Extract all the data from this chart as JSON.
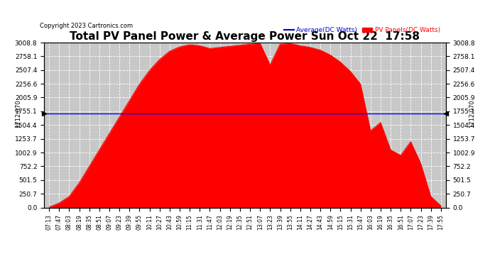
{
  "title": "Total PV Panel Power & Average Power Sun Oct 22  17:58",
  "copyright": "Copyright 2023 Cartronics.com",
  "legend_avg": "Average(DC Watts)",
  "legend_pv": "PV Panels(DC Watts)",
  "avg_value": 1712.07,
  "avg_label": "1712.070",
  "y_max": 3008.8,
  "y_min": 0.0,
  "yticks": [
    0.0,
    250.7,
    501.5,
    752.2,
    1002.9,
    1253.7,
    1504.4,
    1755.1,
    2005.9,
    2256.6,
    2507.4,
    2758.1,
    3008.8
  ],
  "bg_color": "#ffffff",
  "plot_bg_color": "#c8c8c8",
  "fill_color": "#ff0000",
  "avg_line_color": "#0000ff",
  "grid_color": "#ffffff",
  "title_color": "#000000",
  "copyright_color": "#000000",
  "legend_avg_color": "#0000cd",
  "legend_pv_color": "#ff0000",
  "xtick_labels": [
    "07:13",
    "07:47",
    "08:03",
    "08:19",
    "08:35",
    "08:51",
    "09:07",
    "09:23",
    "09:39",
    "09:55",
    "10:11",
    "10:27",
    "10:43",
    "10:59",
    "11:15",
    "11:31",
    "11:47",
    "12:03",
    "12:19",
    "12:35",
    "12:51",
    "13:07",
    "13:23",
    "13:39",
    "13:55",
    "14:11",
    "14:27",
    "14:43",
    "14:59",
    "15:15",
    "15:31",
    "15:47",
    "16:03",
    "16:19",
    "16:35",
    "16:51",
    "17:07",
    "17:23",
    "17:39",
    "17:55"
  ],
  "pv_values": [
    5,
    80,
    200,
    450,
    750,
    1050,
    1350,
    1650,
    1950,
    2250,
    2500,
    2700,
    2850,
    2930,
    2970,
    2950,
    2900,
    2920,
    2940,
    2960,
    2980,
    2995,
    2600,
    2980,
    2990,
    2950,
    2920,
    2870,
    2780,
    2650,
    2480,
    2250,
    1400,
    1550,
    1050,
    950,
    1200,
    800,
    200,
    30
  ]
}
